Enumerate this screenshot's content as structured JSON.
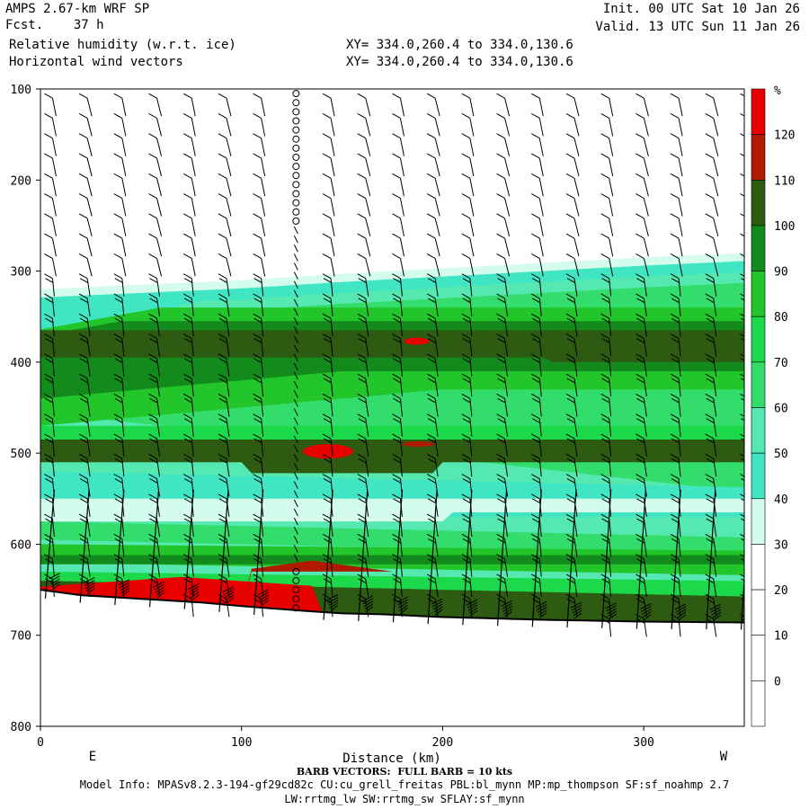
{
  "header": {
    "model": "AMPS 2.67-km WRF SP",
    "fcst": "Fcst.    37 h",
    "field1": "Relative humidity (w.r.t. ice)",
    "field2": "Horizontal wind vectors",
    "init": "Init. 00 UTC Sat 10 Jan 26",
    "valid": "Valid. 13 UTC Sun 11 Jan 26",
    "xy1": "XY= 334.0,260.4 to 334.0,130.6",
    "xy2": "XY= 334.0,260.4 to 334.0,130.6"
  },
  "footer": {
    "barb_note": "BARB VECTORS:  FULL BARB = 10 kts",
    "model_info": "Model Info: MPASv8.2.3-194-gf29cd82c CU:cu_grell_freitas PBL:bl_mynn MP:mp_thompson SF:sf_noahmp 2.7",
    "model_info2": "LW:rrtmg_lw SW:rrtmg_sw SFLAY:sf_mynn"
  },
  "colors": {
    "c0": "#ffffff",
    "c10": "#ffffff",
    "c20": "#ffffff",
    "c30": "#d4fcec",
    "c40": "#40e6c4",
    "c50": "#55e8b0",
    "c60": "#33dd6b",
    "c70": "#1bd94a",
    "c80": "#22c52a",
    "c90": "#138a1c",
    "c100": "#2e5b12",
    "c110": "#b01a00",
    "c120": "#e80000",
    "terrain": "#000000"
  },
  "chart_data": {
    "type": "heatmap",
    "xlabel": "Distance (km)",
    "ylabel": "",
    "x_ticks": [
      0,
      100,
      200,
      300
    ],
    "xlim": [
      0,
      350
    ],
    "y_ticks": [
      100,
      200,
      300,
      400,
      500,
      600,
      700,
      800
    ],
    "ylim": [
      100,
      800
    ],
    "y_reversed": true,
    "left_end_label": "E",
    "right_end_label": "W",
    "colorbar": {
      "unit": "%",
      "levels": [
        0,
        10,
        20,
        30,
        40,
        50,
        60,
        70,
        80,
        90,
        100,
        110,
        120
      ]
    },
    "terrain_surface": {
      "distance": [
        0,
        20,
        50,
        80,
        100,
        130,
        150,
        170,
        200,
        250,
        300,
        350
      ],
      "pressure": [
        650,
        656,
        660,
        664,
        668,
        673,
        676,
        677,
        680,
        683,
        685,
        686
      ]
    },
    "moist_layer_top": {
      "distance": [
        0,
        50,
        100,
        150,
        200,
        250,
        300,
        350
      ],
      "pressure": [
        325,
        320,
        315,
        308,
        302,
        296,
        290,
        285
      ]
    },
    "wind_barbs": "Horizontal wind vectors along the cross section"
  }
}
